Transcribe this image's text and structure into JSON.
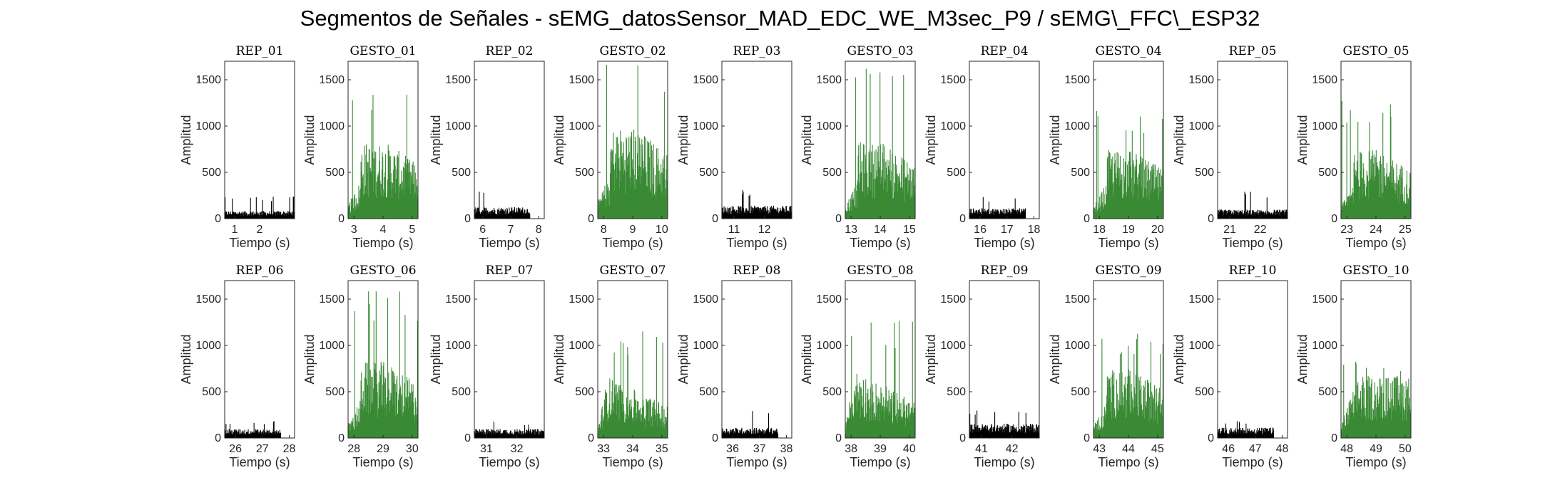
{
  "figure": {
    "title": "Segmentos de Señales - sEMG_datosSensor_MAD_EDC_WE_M3sec_P9 / sEMG\\_FFC\\_ESP32"
  },
  "colors": {
    "rep": "#000000",
    "gesto": "#3a8a35",
    "axis": "#262626"
  },
  "chart_data": [
    {
      "type": "bar",
      "title": "REP_01",
      "xlabel": "Tiempo (s)",
      "ylabel": "Amplitud",
      "xlim": [
        0.6,
        3.4
      ],
      "ylim": [
        0,
        1700
      ],
      "xticks": [
        "1",
        "2"
      ],
      "yticks": [
        "0",
        "500",
        "1000",
        "1500"
      ],
      "signal": {
        "kind": "rest",
        "t_start": 0.6,
        "t_end": 3.4,
        "level": 60,
        "peak": 250
      }
    },
    {
      "type": "bar",
      "title": "GESTO_01",
      "xlabel": "Tiempo (s)",
      "ylabel": "Amplitud",
      "xlim": [
        2.8,
        5.2
      ],
      "ylim": [
        0,
        1700
      ],
      "xticks": [
        "3",
        "4",
        "5"
      ],
      "yticks": [
        "0",
        "500",
        "1000",
        "1500"
      ],
      "signal": {
        "kind": "gesture",
        "t_start": 2.8,
        "t_end": 5.2,
        "level": 500,
        "peak": 1350
      }
    },
    {
      "type": "bar",
      "title": "REP_02",
      "xlabel": "Tiempo (s)",
      "ylabel": "Amplitud",
      "xlim": [
        5.7,
        8.2
      ],
      "ylim": [
        0,
        1700
      ],
      "xticks": [
        "6",
        "7",
        "8"
      ],
      "yticks": [
        "0",
        "500",
        "1000",
        "1500"
      ],
      "signal": {
        "kind": "rest",
        "t_start": 5.7,
        "t_end": 7.7,
        "level": 90,
        "peak": 300
      }
    },
    {
      "type": "bar",
      "title": "GESTO_02",
      "xlabel": "Tiempo (s)",
      "ylabel": "Amplitud",
      "xlim": [
        7.8,
        10.2
      ],
      "ylim": [
        0,
        1700
      ],
      "xticks": [
        "8",
        "9",
        "10"
      ],
      "yticks": [
        "0",
        "500",
        "1000",
        "1500"
      ],
      "signal": {
        "kind": "gesture",
        "t_start": 7.8,
        "t_end": 10.2,
        "level": 600,
        "peak": 1680
      }
    },
    {
      "type": "bar",
      "title": "REP_03",
      "xlabel": "Tiempo (s)",
      "ylabel": "Amplitud",
      "xlim": [
        10.6,
        12.9
      ],
      "ylim": [
        0,
        1700
      ],
      "xticks": [
        "11",
        "12"
      ],
      "yticks": [
        "0",
        "500",
        "1000",
        "1500"
      ],
      "signal": {
        "kind": "rest",
        "t_start": 10.6,
        "t_end": 12.9,
        "level": 100,
        "peak": 310
      }
    },
    {
      "type": "bar",
      "title": "GESTO_03",
      "xlabel": "Tiempo (s)",
      "ylabel": "Amplitud",
      "xlim": [
        12.8,
        15.2
      ],
      "ylim": [
        0,
        1700
      ],
      "xticks": [
        "13",
        "14",
        "15"
      ],
      "yticks": [
        "0",
        "500",
        "1000",
        "1500"
      ],
      "signal": {
        "kind": "gesture",
        "t_start": 12.8,
        "t_end": 15.2,
        "level": 500,
        "peak": 1650
      }
    },
    {
      "type": "bar",
      "title": "REP_04",
      "xlabel": "Tiempo (s)",
      "ylabel": "Amplitud",
      "xlim": [
        15.6,
        18.2
      ],
      "ylim": [
        0,
        1700
      ],
      "xticks": [
        "16",
        "17",
        "18"
      ],
      "yticks": [
        "0",
        "500",
        "1000",
        "1500"
      ],
      "signal": {
        "kind": "rest",
        "t_start": 15.6,
        "t_end": 17.7,
        "level": 80,
        "peak": 240
      }
    },
    {
      "type": "bar",
      "title": "GESTO_04",
      "xlabel": "Tiempo (s)",
      "ylabel": "Amplitud",
      "xlim": [
        17.8,
        20.2
      ],
      "ylim": [
        0,
        1700
      ],
      "xticks": [
        "18",
        "19",
        "20"
      ],
      "yticks": [
        "0",
        "500",
        "1000",
        "1500"
      ],
      "signal": {
        "kind": "gesture",
        "t_start": 17.8,
        "t_end": 20.2,
        "level": 450,
        "peak": 1230
      }
    },
    {
      "type": "bar",
      "title": "REP_05",
      "xlabel": "Tiempo (s)",
      "ylabel": "Amplitud",
      "xlim": [
        20.6,
        22.9
      ],
      "ylim": [
        0,
        1700
      ],
      "xticks": [
        "21",
        "22"
      ],
      "yticks": [
        "0",
        "500",
        "1000",
        "1500"
      ],
      "signal": {
        "kind": "rest",
        "t_start": 20.6,
        "t_end": 22.9,
        "level": 70,
        "peak": 300
      }
    },
    {
      "type": "bar",
      "title": "GESTO_05",
      "xlabel": "Tiempo (s)",
      "ylabel": "Amplitud",
      "xlim": [
        22.8,
        25.2
      ],
      "ylim": [
        0,
        1700
      ],
      "xticks": [
        "23",
        "24",
        "25"
      ],
      "yticks": [
        "0",
        "500",
        "1000",
        "1500"
      ],
      "signal": {
        "kind": "gesture",
        "t_start": 22.8,
        "t_end": 25.2,
        "level": 450,
        "peak": 1320
      }
    },
    {
      "type": "bar",
      "title": "REP_06",
      "xlabel": "Tiempo (s)",
      "ylabel": "Amplitud",
      "xlim": [
        25.6,
        28.2
      ],
      "ylim": [
        0,
        1700
      ],
      "xticks": [
        "26",
        "27",
        "28"
      ],
      "yticks": [
        "0",
        "500",
        "1000",
        "1500"
      ],
      "signal": {
        "kind": "rest",
        "t_start": 25.6,
        "t_end": 27.7,
        "level": 70,
        "peak": 190
      }
    },
    {
      "type": "bar",
      "title": "GESTO_06",
      "xlabel": "Tiempo (s)",
      "ylabel": "Amplitud",
      "xlim": [
        27.8,
        30.2
      ],
      "ylim": [
        0,
        1700
      ],
      "xticks": [
        "28",
        "29",
        "30"
      ],
      "yticks": [
        "0",
        "500",
        "1000",
        "1500"
      ],
      "signal": {
        "kind": "gesture",
        "t_start": 27.8,
        "t_end": 30.2,
        "level": 500,
        "peak": 1660
      }
    },
    {
      "type": "bar",
      "title": "REP_07",
      "xlabel": "Tiempo (s)",
      "ylabel": "Amplitud",
      "xlim": [
        30.6,
        32.9
      ],
      "ylim": [
        0,
        1700
      ],
      "xticks": [
        "31",
        "32"
      ],
      "yticks": [
        "0",
        "500",
        "1000",
        "1500"
      ],
      "signal": {
        "kind": "rest",
        "t_start": 30.6,
        "t_end": 32.9,
        "level": 70,
        "peak": 180
      }
    },
    {
      "type": "bar",
      "title": "GESTO_07",
      "xlabel": "Tiempo (s)",
      "ylabel": "Amplitud",
      "xlim": [
        32.8,
        35.2
      ],
      "ylim": [
        0,
        1700
      ],
      "xticks": [
        "33",
        "34",
        "35"
      ],
      "yticks": [
        "0",
        "500",
        "1000",
        "1500"
      ],
      "signal": {
        "kind": "gesture_early",
        "t_start": 32.8,
        "t_end": 35.2,
        "level": 450,
        "peak": 1170
      }
    },
    {
      "type": "bar",
      "title": "REP_08",
      "xlabel": "Tiempo (s)",
      "ylabel": "Amplitud",
      "xlim": [
        35.6,
        38.2
      ],
      "ylim": [
        0,
        1700
      ],
      "xticks": [
        "36",
        "37",
        "38"
      ],
      "yticks": [
        "0",
        "500",
        "1000",
        "1500"
      ],
      "signal": {
        "kind": "rest",
        "t_start": 35.6,
        "t_end": 37.7,
        "level": 80,
        "peak": 300
      }
    },
    {
      "type": "bar",
      "title": "GESTO_08",
      "xlabel": "Tiempo (s)",
      "ylabel": "Amplitud",
      "xlim": [
        37.8,
        40.2
      ],
      "ylim": [
        0,
        1700
      ],
      "xticks": [
        "38",
        "39",
        "40"
      ],
      "yticks": [
        "0",
        "500",
        "1000",
        "1500"
      ],
      "signal": {
        "kind": "gesture_early",
        "t_start": 37.8,
        "t_end": 40.2,
        "level": 500,
        "peak": 1280
      }
    },
    {
      "type": "bar",
      "title": "REP_09",
      "xlabel": "Tiempo (s)",
      "ylabel": "Amplitud",
      "xlim": [
        40.6,
        42.9
      ],
      "ylim": [
        0,
        1700
      ],
      "xticks": [
        "41",
        "42"
      ],
      "yticks": [
        "0",
        "500",
        "1000",
        "1500"
      ],
      "signal": {
        "kind": "rest",
        "t_start": 40.6,
        "t_end": 42.9,
        "level": 110,
        "peak": 310
      }
    },
    {
      "type": "bar",
      "title": "GESTO_09",
      "xlabel": "Tiempo (s)",
      "ylabel": "Amplitud",
      "xlim": [
        42.8,
        45.2
      ],
      "ylim": [
        0,
        1700
      ],
      "xticks": [
        "43",
        "44",
        "45"
      ],
      "yticks": [
        "0",
        "500",
        "1000",
        "1500"
      ],
      "signal": {
        "kind": "gesture",
        "t_start": 42.8,
        "t_end": 45.2,
        "level": 450,
        "peak": 1190
      }
    },
    {
      "type": "bar",
      "title": "REP_10",
      "xlabel": "Tiempo (s)",
      "ylabel": "Amplitud",
      "xlim": [
        45.6,
        48.2
      ],
      "ylim": [
        0,
        1700
      ],
      "xticks": [
        "46",
        "47",
        "48"
      ],
      "yticks": [
        "0",
        "500",
        "1000",
        "1500"
      ],
      "signal": {
        "kind": "rest",
        "t_start": 45.6,
        "t_end": 47.7,
        "level": 80,
        "peak": 200
      }
    },
    {
      "type": "bar",
      "title": "GESTO_10",
      "xlabel": "Tiempo (s)",
      "ylabel": "Amplitud",
      "xlim": [
        47.8,
        50.2
      ],
      "ylim": [
        0,
        1700
      ],
      "xticks": [
        "48",
        "49",
        "50"
      ],
      "yticks": [
        "0",
        "500",
        "1000",
        "1500"
      ],
      "signal": {
        "kind": "gesture_plateau",
        "t_start": 47.8,
        "t_end": 50.2,
        "level": 450,
        "peak": 840
      }
    }
  ]
}
